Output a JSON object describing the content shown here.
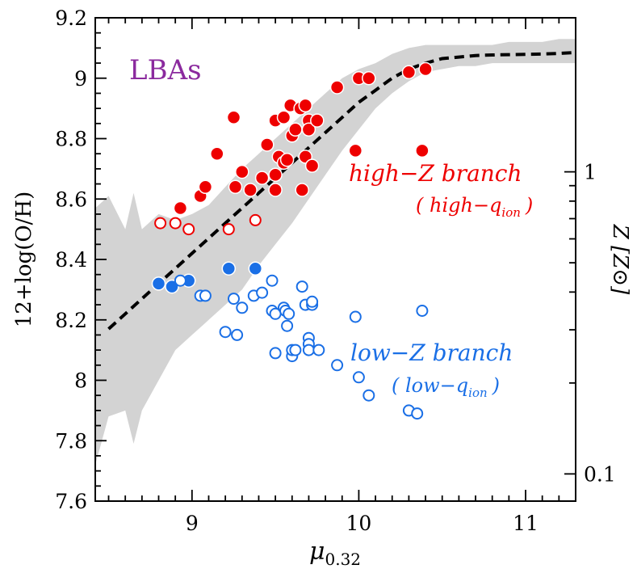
{
  "chart_data": {
    "type": "scatter",
    "title": "",
    "xlabel": "μ",
    "xlabel_sub": "0.32",
    "ylabel": "12+log(O/H)",
    "y2label": "Z [Z⊙]",
    "xlim": [
      8.42,
      11.3
    ],
    "ylim": [
      7.6,
      9.2
    ],
    "xticks": [
      9,
      10,
      11
    ],
    "xtick_labels": [
      "9",
      "10",
      "11"
    ],
    "yticks": [
      7.6,
      7.8,
      8.0,
      8.2,
      8.4,
      8.6,
      8.8,
      9.0,
      9.2
    ],
    "ytick_labels": [
      "7.6",
      "7.8",
      "8",
      "8.2",
      "8.4",
      "8.6",
      "8.8",
      "9",
      "9.2"
    ],
    "y2ticks": [
      {
        "z": 0.1,
        "label": "0.1"
      },
      {
        "z": 0.2,
        "label": ""
      },
      {
        "z": 0.3,
        "label": ""
      },
      {
        "z": 0.4,
        "label": ""
      },
      {
        "z": 0.5,
        "label": ""
      },
      {
        "z": 0.6,
        "label": ""
      },
      {
        "z": 0.7,
        "label": ""
      },
      {
        "z": 0.8,
        "label": ""
      },
      {
        "z": 0.9,
        "label": ""
      },
      {
        "z": 1.0,
        "label": "1"
      }
    ],
    "colors": {
      "red": "#ee0000",
      "blue": "#1a6fe6",
      "band": "#d3d3d3",
      "lbas": "#8b2a9e"
    },
    "annotations": {
      "lbas": "LBAs",
      "high_branch": "high−Z branch",
      "high_sub": "( high−q",
      "high_sub_index": "ion",
      "high_sub_close": ")",
      "low_branch": "low−Z branch",
      "low_sub": "( low−q",
      "low_sub_index": "ion",
      "low_sub_close": ")"
    },
    "series": [
      {
        "style": "red-filled",
        "x": [
          8.93,
          9.05,
          9.08,
          9.15,
          9.25,
          9.26,
          9.3,
          9.35,
          9.42,
          9.45,
          9.5,
          9.5,
          9.5,
          9.52,
          9.55,
          9.55,
          9.57,
          9.59,
          9.6,
          9.62,
          9.65,
          9.66,
          9.68,
          9.68,
          9.7,
          9.7,
          9.72,
          9.75,
          9.87,
          9.98,
          10.0,
          10.06,
          10.3,
          10.4,
          10.38
        ],
        "y": [
          8.57,
          8.61,
          8.64,
          8.75,
          8.87,
          8.64,
          8.69,
          8.63,
          8.67,
          8.78,
          8.86,
          8.68,
          8.63,
          8.74,
          8.72,
          8.87,
          8.73,
          8.91,
          8.81,
          8.83,
          8.9,
          8.63,
          8.74,
          8.91,
          8.86,
          8.83,
          8.71,
          8.86,
          8.97,
          8.76,
          9.0,
          9.0,
          9.02,
          9.03,
          8.76
        ]
      },
      {
        "style": "red-open",
        "x": [
          8.81,
          8.9,
          8.98,
          9.22,
          9.38
        ],
        "y": [
          8.52,
          8.52,
          8.5,
          8.5,
          8.53
        ]
      },
      {
        "style": "blue-filled",
        "x": [
          8.8,
          8.88,
          8.98,
          9.22,
          9.38
        ],
        "y": [
          8.32,
          8.31,
          8.33,
          8.37,
          8.37
        ]
      },
      {
        "style": "blue-open",
        "x": [
          8.93,
          9.05,
          9.08,
          9.2,
          9.25,
          9.27,
          9.3,
          9.37,
          9.42,
          9.48,
          9.48,
          9.5,
          9.5,
          9.55,
          9.56,
          9.57,
          9.58,
          9.6,
          9.6,
          9.62,
          9.66,
          9.68,
          9.7,
          9.7,
          9.7,
          9.72,
          9.72,
          9.76,
          9.87,
          9.98,
          10.0,
          10.06,
          10.3,
          10.35,
          10.38
        ],
        "y": [
          8.33,
          8.28,
          8.28,
          8.16,
          8.27,
          8.15,
          8.24,
          8.28,
          8.29,
          8.33,
          8.23,
          8.22,
          8.09,
          8.24,
          8.23,
          8.18,
          8.22,
          8.08,
          8.1,
          8.1,
          8.31,
          8.25,
          8.14,
          8.12,
          8.1,
          8.25,
          8.26,
          8.1,
          8.05,
          8.21,
          8.01,
          7.95,
          7.9,
          7.89,
          8.23
        ]
      }
    ],
    "model_curve": {
      "style": "dashed",
      "x": [
        8.5,
        8.6,
        8.7,
        8.8,
        8.9,
        9.0,
        9.1,
        9.2,
        9.3,
        9.4,
        9.5,
        9.6,
        9.7,
        9.8,
        9.9,
        10.0,
        10.1,
        10.2,
        10.3,
        10.4,
        10.5,
        10.6,
        10.7,
        10.8,
        10.9,
        11.0,
        11.1,
        11.2,
        11.3
      ],
      "y": [
        8.17,
        8.22,
        8.27,
        8.32,
        8.37,
        8.42,
        8.47,
        8.52,
        8.57,
        8.62,
        8.67,
        8.72,
        8.77,
        8.82,
        8.87,
        8.92,
        8.96,
        9.0,
        9.03,
        9.05,
        9.065,
        9.07,
        9.075,
        9.077,
        9.078,
        9.079,
        9.08,
        9.082,
        9.085
      ]
    },
    "model_band": {
      "x": [
        8.42,
        8.5,
        8.6,
        8.65,
        8.7,
        8.8,
        8.9,
        9.0,
        9.1,
        9.2,
        9.3,
        9.4,
        9.5,
        9.6,
        9.7,
        9.8,
        9.9,
        10.0,
        10.1,
        10.2,
        10.3,
        10.4,
        10.5,
        10.6,
        10.7,
        10.8,
        10.9,
        11.0,
        11.1,
        11.2,
        11.3
      ],
      "upper": [
        8.57,
        8.61,
        8.5,
        8.62,
        8.5,
        8.55,
        8.53,
        8.55,
        8.58,
        8.64,
        8.7,
        8.75,
        8.8,
        8.85,
        8.9,
        8.95,
        9.0,
        9.03,
        9.05,
        9.08,
        9.1,
        9.11,
        9.11,
        9.11,
        9.11,
        9.11,
        9.12,
        9.12,
        9.12,
        9.13,
        9.13
      ],
      "lower": [
        7.72,
        7.88,
        7.9,
        7.79,
        7.9,
        8.0,
        8.1,
        8.15,
        8.2,
        8.25,
        8.3,
        8.38,
        8.45,
        8.52,
        8.6,
        8.68,
        8.76,
        8.83,
        8.9,
        8.95,
        8.99,
        9.02,
        9.03,
        9.04,
        9.04,
        9.05,
        9.05,
        9.05,
        9.05,
        9.05,
        9.05
      ]
    }
  }
}
